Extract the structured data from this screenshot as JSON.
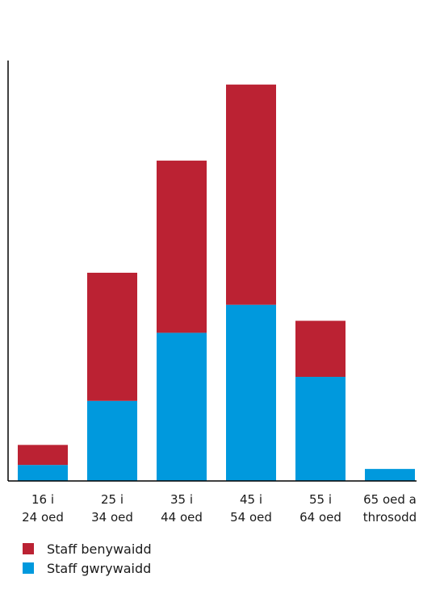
{
  "chart_data": {
    "type": "bar",
    "stacked": true,
    "categories": [
      [
        "16 i",
        "24 oed"
      ],
      [
        "25 i",
        "34 oed"
      ],
      [
        "35 i",
        "44 oed"
      ],
      [
        "45 i",
        "54 oed"
      ],
      [
        "55 i",
        "64 oed"
      ],
      [
        "65 oed a",
        "throsodd"
      ]
    ],
    "series": [
      {
        "name": "Staff gwrywaidd",
        "color": "#0099dd",
        "values": [
          4,
          20,
          37,
          44,
          26,
          3
        ]
      },
      {
        "name": "Staff benywaidd",
        "color": "#bb2233",
        "values": [
          5,
          32,
          43,
          55,
          14,
          0
        ]
      }
    ],
    "ylim": [
      0,
      105
    ],
    "grid": false,
    "y_tick_labels_shown": false,
    "legend_position": "bottom-left"
  },
  "legend": {
    "items": [
      {
        "label": "Staff benywaidd",
        "color": "#bb2233"
      },
      {
        "label": "Staff gwrywaidd",
        "color": "#0099dd"
      }
    ]
  }
}
